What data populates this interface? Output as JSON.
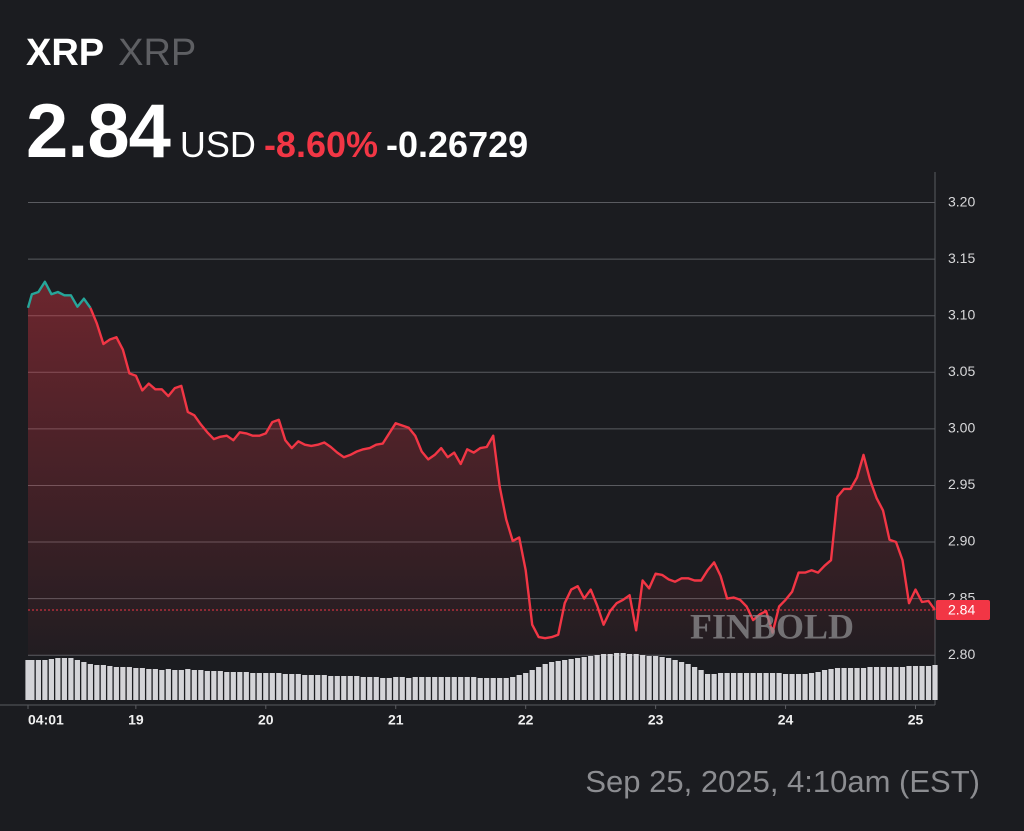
{
  "chart_data": {
    "type": "line",
    "title": "XRP",
    "subtitle": "XRP",
    "price": 2.84,
    "currency": "USD",
    "change_percent": -8.6,
    "change_percent_label": "-8.60%",
    "change": -0.26729,
    "timestamp": "Sep 25, 2025, 4:10am (EST)",
    "watermark": "FINBOLD",
    "x": [
      18.17,
      18.2,
      18.25,
      18.3,
      18.35,
      18.4,
      18.45,
      18.5,
      18.55,
      18.6,
      18.65,
      18.7,
      18.75,
      18.8,
      18.85,
      18.9,
      18.95,
      19,
      19.05,
      19.1,
      19.15,
      19.2,
      19.25,
      19.3,
      19.35,
      19.4,
      19.45,
      19.5,
      19.55,
      19.6,
      19.65,
      19.7,
      19.75,
      19.8,
      19.85,
      19.9,
      19.95,
      20,
      20.05,
      20.1,
      20.15,
      20.2,
      20.25,
      20.3,
      20.35,
      20.4,
      20.45,
      20.5,
      20.55,
      20.6,
      20.65,
      20.7,
      20.75,
      20.8,
      20.85,
      20.9,
      20.95,
      21,
      21.05,
      21.1,
      21.15,
      21.2,
      21.25,
      21.3,
      21.35,
      21.4,
      21.45,
      21.5,
      21.55,
      21.6,
      21.65,
      21.7,
      21.75,
      21.8,
      21.85,
      21.9,
      21.95,
      22,
      22.05,
      22.1,
      22.15,
      22.2,
      22.25,
      22.3,
      22.35,
      22.4,
      22.45,
      22.5,
      22.55,
      22.6,
      22.65,
      22.7,
      22.75,
      22.8,
      22.85,
      22.9,
      22.95,
      23,
      23.05,
      23.1,
      23.15,
      23.2,
      23.25,
      23.3,
      23.35,
      23.4,
      23.45,
      23.5,
      23.55,
      23.6,
      23.65,
      23.7,
      23.75,
      23.8,
      23.85,
      23.9,
      23.95,
      24,
      24.05,
      24.1,
      24.15,
      24.2,
      24.25,
      24.3,
      24.35,
      24.4,
      24.45,
      24.5,
      24.55,
      24.6,
      24.65,
      24.7,
      24.75,
      24.8,
      24.85,
      24.9,
      24.95,
      25,
      25.05,
      25.1,
      25.15
    ],
    "series": [
      {
        "color": "#f23645",
        "up_color": "#26a69a",
        "values": [
          3.107,
          3.119,
          3.121,
          3.13,
          3.119,
          3.121,
          3.118,
          3.118,
          3.108,
          3.115,
          3.107,
          3.093,
          3.075,
          3.079,
          3.081,
          3.07,
          3.049,
          3.047,
          3.034,
          3.04,
          3.035,
          3.035,
          3.029,
          3.036,
          3.038,
          3.015,
          3.012,
          3.004,
          2.997,
          2.991,
          2.993,
          2.994,
          2.99,
          2.997,
          2.996,
          2.994,
          2.994,
          2.996,
          3.006,
          3.008,
          2.99,
          2.983,
          2.989,
          2.986,
          2.985,
          2.986,
          2.988,
          2.984,
          2.979,
          2.975,
          2.977,
          2.98,
          2.982,
          2.983,
          2.986,
          2.987,
          2.996,
          3.005,
          3.003,
          3.001,
          2.994,
          2.98,
          2.973,
          2.977,
          2.983,
          2.975,
          2.979,
          2.969,
          2.982,
          2.979,
          2.983,
          2.984,
          2.994,
          2.949,
          2.92,
          2.901,
          2.904,
          2.875,
          2.827,
          2.816,
          2.815,
          2.816,
          2.818,
          2.846,
          2.858,
          2.861,
          2.85,
          2.858,
          2.844,
          2.827,
          2.839,
          2.846,
          2.849,
          2.853,
          2.822,
          2.866,
          2.859,
          2.872,
          2.871,
          2.867,
          2.865,
          2.868,
          2.868,
          2.866,
          2.866,
          2.875,
          2.882,
          2.87,
          2.85,
          2.851,
          2.849,
          2.843,
          2.831,
          2.836,
          2.839,
          2.82,
          2.843,
          2.849,
          2.856,
          2.873,
          2.873,
          2.875,
          2.873,
          2.879,
          2.884,
          2.94,
          2.947,
          2.947,
          2.957,
          2.977,
          2.955,
          2.939,
          2.928,
          2.902,
          2.9,
          2.884,
          2.846,
          2.858,
          2.847,
          2.848,
          2.84
        ]
      }
    ],
    "volume": {
      "color": "#d4d4d8",
      "values": [
        40,
        40,
        40,
        40,
        41,
        42,
        42,
        42,
        40,
        38,
        36,
        35,
        35,
        34,
        33,
        33,
        33,
        32,
        32,
        31,
        31,
        30,
        31,
        30,
        30,
        31,
        30,
        30,
        29,
        29,
        29,
        28,
        28,
        28,
        28,
        27,
        27,
        27,
        27,
        27,
        26,
        26,
        26,
        25,
        25,
        25,
        25,
        24,
        24,
        24,
        24,
        24,
        23,
        23,
        23,
        22,
        22,
        23,
        23,
        22,
        23,
        23,
        23,
        23,
        23,
        23,
        23,
        23,
        23,
        23,
        22,
        22,
        22,
        22,
        22,
        23,
        25,
        27,
        30,
        33,
        36,
        38,
        39,
        40,
        41,
        42,
        43,
        44,
        45,
        46,
        46,
        47,
        47,
        46,
        46,
        45,
        44,
        44,
        43,
        42,
        40,
        38,
        36,
        33,
        30,
        26,
        26,
        27,
        27,
        27,
        27,
        27,
        27,
        27,
        27,
        27,
        27,
        26,
        26,
        26,
        26,
        27,
        28,
        30,
        31,
        32,
        32,
        32,
        32,
        32,
        33,
        33,
        33,
        33,
        33,
        33,
        34,
        34,
        34,
        34,
        35
      ]
    },
    "xlim": [
      18.17,
      25.15
    ],
    "ylim": [
      2.756,
      3.227
    ],
    "xticks": [
      {
        "value": 18.17,
        "label": "04:01"
      },
      19,
      20,
      21,
      22,
      23,
      24,
      25
    ],
    "yticks": [
      {
        "value": 2.8,
        "label": "2.80"
      },
      2.85,
      {
        "value": 2.9,
        "label": "2.90"
      },
      2.95,
      {
        "value": 3,
        "label": "3.00"
      },
      3.05,
      {
        "value": 3.1,
        "label": "3.10"
      },
      3.15,
      {
        "value": 3.2,
        "label": "3.20"
      }
    ],
    "grid": true
  }
}
